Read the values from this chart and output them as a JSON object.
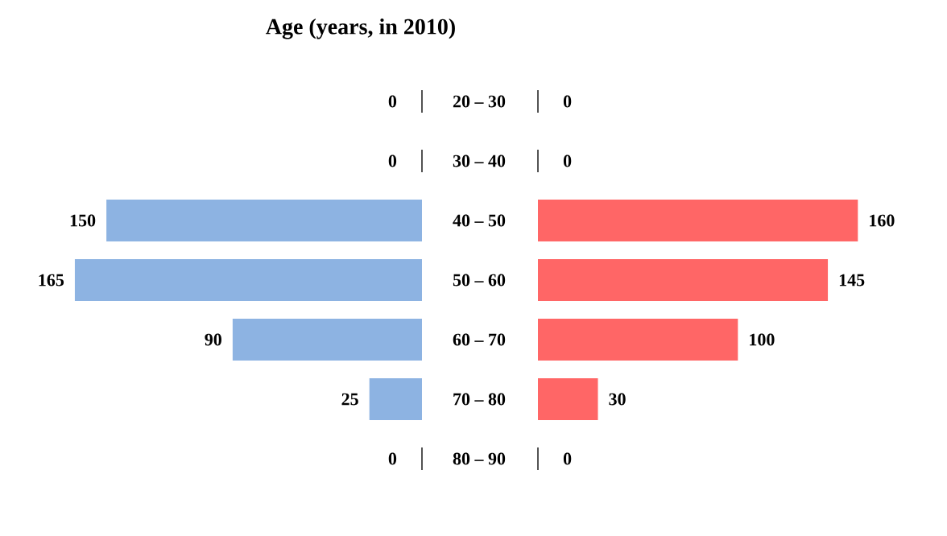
{
  "chart_data": [
    {
      "type": "bar",
      "orientation": "horizontal",
      "title": "Age (years, in 2010)",
      "categories": [
        "20 – 30",
        "30 – 40",
        "40 – 50",
        "50 – 60",
        "60 – 70",
        "70 – 80",
        "80 – 90"
      ],
      "series": [
        {
          "color": "#8db3e2",
          "values": [
            0,
            0,
            150,
            165,
            90,
            25,
            0
          ]
        }
      ],
      "data_labels": true
    },
    {
      "type": "bar",
      "orientation": "horizontal",
      "categories": [
        null,
        null,
        null,
        null,
        null,
        null,
        null
      ],
      "series": [
        {
          "color": "#ff6666",
          "values": [
            0,
            0,
            160,
            145,
            100,
            30,
            0
          ]
        }
      ],
      "data_labels": true
    }
  ]
}
